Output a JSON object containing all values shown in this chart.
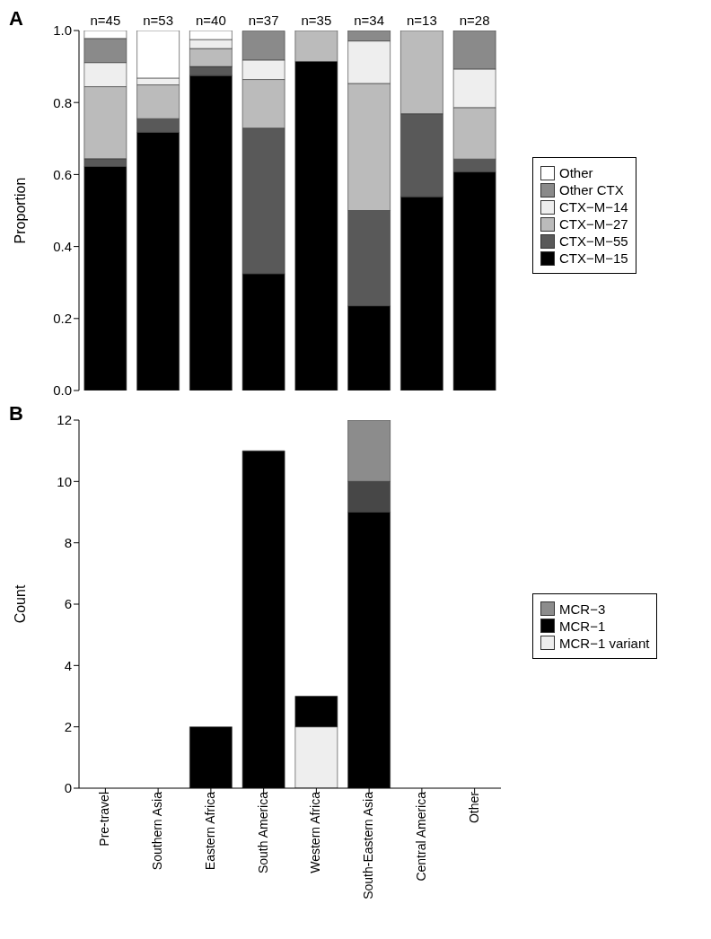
{
  "chart_data": [
    {
      "type": "bar",
      "title": "A",
      "ylabel": "Proportion",
      "stacked": true,
      "legend": "right",
      "tick_labels": "y",
      "categories": [
        "Pre-travel",
        "Southern Asia",
        "Eastern Africa",
        "South America",
        "Western Africa",
        "South-Eastern Asia",
        "Central America",
        "Other"
      ],
      "ylim": [
        0,
        1
      ],
      "yticks": [
        {
          "value": 0,
          "label": "0.0"
        },
        {
          "value": 0.2,
          "label": "0.2"
        },
        {
          "value": 0.4,
          "label": "0.4"
        },
        {
          "value": 0.6,
          "label": "0.6"
        },
        {
          "value": 0.8,
          "label": "0.8"
        },
        {
          "value": 1,
          "label": "1.0"
        }
      ],
      "series": [
        {
          "name": "CTX−M−15",
          "color": "#000000",
          "values": [
            0.622,
            0.717,
            0.875,
            0.324,
            0.914,
            0.235,
            0.538,
            0.607
          ]
        },
        {
          "name": "CTX−M−55",
          "color": "#595959",
          "values": [
            0.022,
            0.038,
            0.025,
            0.405,
            0,
            0.265,
            0.231,
            0.036
          ]
        },
        {
          "name": "CTX−M−27",
          "color": "#bbbbbb",
          "values": [
            0.2,
            0.094,
            0.05,
            0.135,
            0.086,
            0.353,
            0.231,
            0.143
          ]
        },
        {
          "name": "CTX−M−14",
          "color": "#eeeeee",
          "values": [
            0.067,
            0.019,
            0.025,
            0.054,
            0,
            0.118,
            0,
            0.107
          ]
        },
        {
          "name": "Other CTX",
          "color": "#8a8a8a",
          "values": [
            0.067,
            0,
            0,
            0.081,
            0,
            0.029,
            0,
            0.107
          ]
        },
        {
          "name": "Other",
          "color": "#ffffff",
          "values": [
            0.022,
            0.132,
            0.025,
            0,
            0,
            0,
            0,
            0
          ]
        }
      ],
      "annotations": [
        {
          "text": "n=45",
          "x": "Pre-travel",
          "y": 1
        },
        {
          "text": "n=53",
          "x": "Southern Asia",
          "y": 1
        },
        {
          "text": "n=40",
          "x": "Eastern Africa",
          "y": 1
        },
        {
          "text": "n=37",
          "x": "South America",
          "y": 1
        },
        {
          "text": "n=35",
          "x": "Western Africa",
          "y": 1
        },
        {
          "text": "n=34",
          "x": "South-Eastern Asia",
          "y": 1
        },
        {
          "text": "n=13",
          "x": "Central America",
          "y": 1
        },
        {
          "text": "n=28",
          "x": "Other",
          "y": 1
        }
      ]
    },
    {
      "type": "bar",
      "title": "B",
      "ylabel": "Count",
      "stacked": true,
      "legend": "right",
      "categories": [
        "Pre-travel",
        "Southern Asia",
        "Eastern Africa",
        "South America",
        "Western Africa",
        "South-Eastern Asia",
        "Central America",
        "Other"
      ],
      "ylim": [
        0,
        12
      ],
      "yticks": [
        0,
        2,
        4,
        6,
        8,
        10,
        12
      ],
      "series": [
        {
          "name": "MCR−1 variant",
          "color": "#eeeeee",
          "values": [
            0,
            0,
            0,
            0,
            2,
            0,
            0,
            0
          ]
        },
        {
          "name": "MCR−1",
          "color": "#000000",
          "values": [
            0,
            0,
            2,
            11,
            1,
            9,
            0,
            0
          ]
        },
        {
          "color": "#474747",
          "values": [
            0,
            0,
            0,
            0,
            0,
            1,
            0,
            0
          ]
        },
        {
          "name": "MCR−3",
          "color": "#8c8c8c",
          "values": [
            0,
            0,
            0,
            0,
            0,
            2,
            0,
            0
          ]
        }
      ]
    }
  ]
}
